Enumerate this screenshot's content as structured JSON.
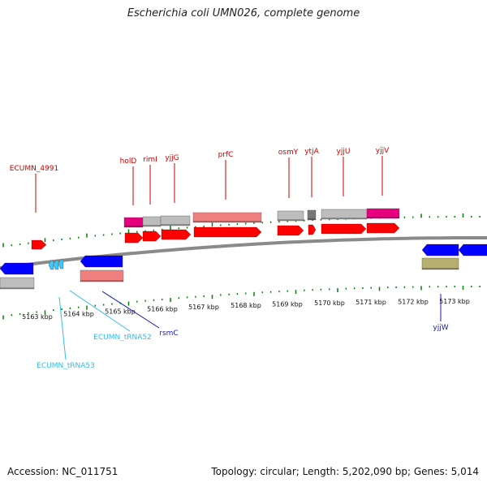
{
  "title": "Escherichia coli UMN026, complete genome",
  "footer": {
    "accession": "Accession: NC_011751",
    "summary": "Topology: circular; Length: 5,202,090 bp; Genes: 5,014"
  },
  "colors": {
    "cds": "#ff0000",
    "gene": "#bdbdbd",
    "gene_partial": "#f08080",
    "gene_highlight": "#e6007e",
    "minus_cds": "#0000ff",
    "trna": "#33ccff",
    "misc": "#b5b070",
    "backbone": "#8a8a8a",
    "ticks": "#008000",
    "label_top": "#cc0000",
    "label_blue": "#1a1aaa",
    "label_cyan": "#33bbee"
  },
  "axis": {
    "unit": "kbp",
    "kbp_labels": [
      "5163 kbp",
      "5164 kbp",
      "5165 kbp",
      "5166 kbp",
      "5167 kbp",
      "5168 kbp",
      "5169 kbp",
      "5170 kbp",
      "5171 kbp",
      "5172 kbp",
      "5173 kbp"
    ]
  },
  "features_top_labels": [
    {
      "name": "ECUMN_4991"
    },
    {
      "name": "holD"
    },
    {
      "name": "rimI"
    },
    {
      "name": "yjjG"
    },
    {
      "name": "prfC"
    },
    {
      "name": "osmY"
    },
    {
      "name": "ytjA"
    },
    {
      "name": "yjjU"
    },
    {
      "name": "yjjV"
    }
  ],
  "features_bottom_labels": [
    {
      "name": "ECUMN_tRNA53",
      "color": "cyan"
    },
    {
      "name": "ECUMN_tRNA52",
      "color": "cyan"
    },
    {
      "name": "rsmC",
      "color": "blue"
    },
    {
      "name": "yjjW",
      "color": "blue"
    }
  ]
}
